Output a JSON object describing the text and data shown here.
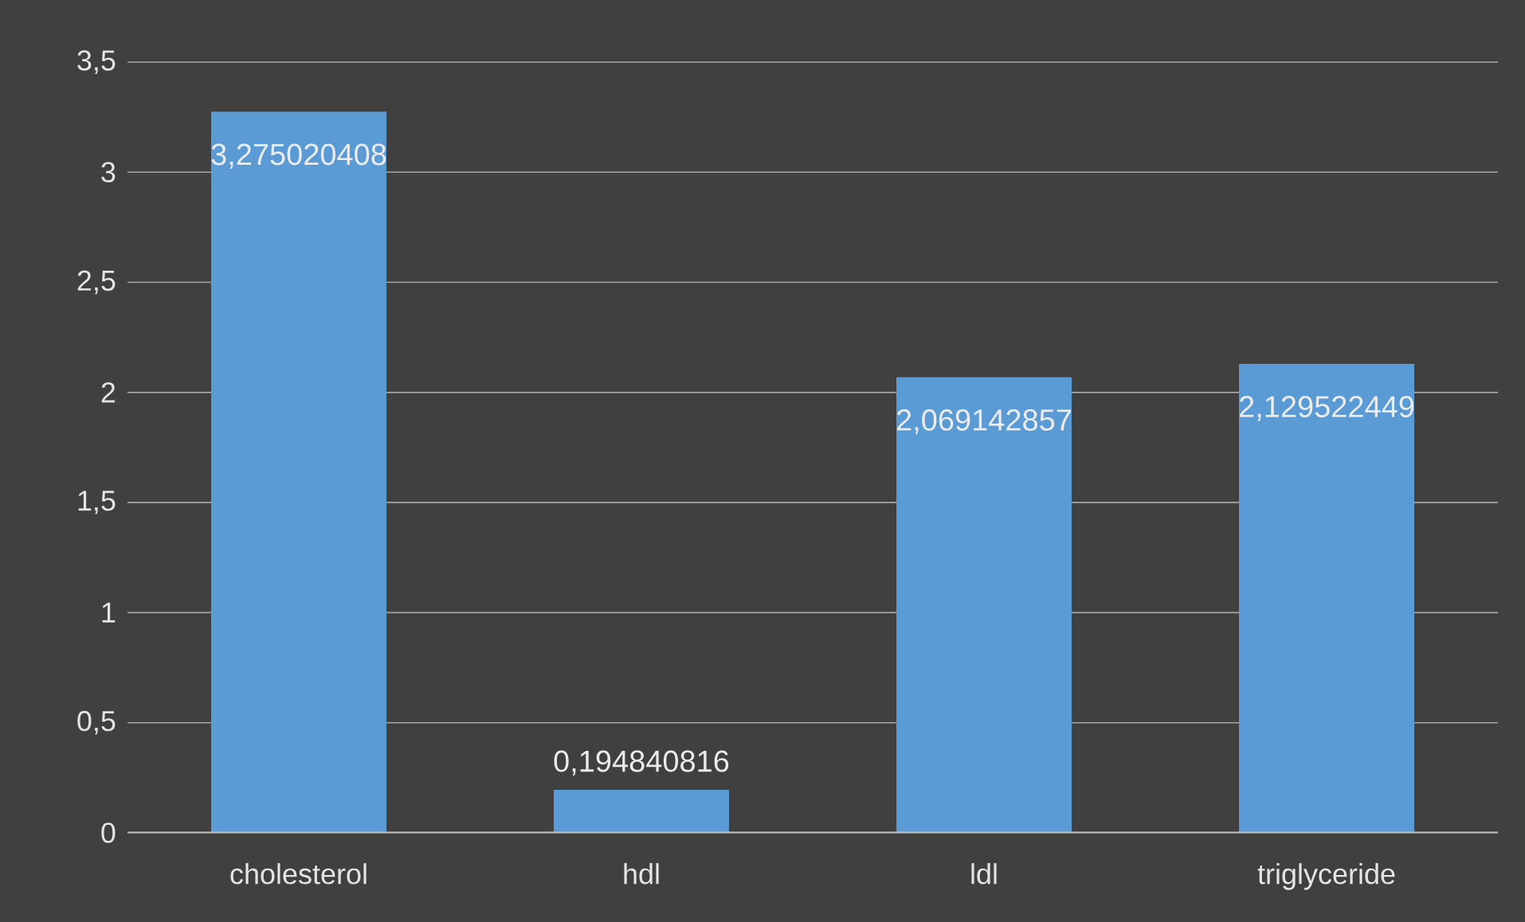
{
  "chart_data": {
    "type": "bar",
    "categories": [
      "cholesterol",
      "hdl",
      "ldl",
      "triglyceride"
    ],
    "values": [
      3.275020408,
      0.194840816,
      2.069142857,
      2.129522449
    ],
    "value_labels": [
      "3,275020408",
      "0,194840816",
      "2,069142857",
      "2,129522449"
    ],
    "color": "#5b9bd5",
    "ylim": [
      0,
      3.5
    ],
    "yticks": [
      0,
      {
        "value": 0.5,
        "label": "0,5"
      },
      1,
      {
        "value": 1.5,
        "label": "1,5"
      },
      2,
      {
        "value": 2.5,
        "label": "2,5"
      },
      3,
      {
        "value": 3.5,
        "label": "3,5"
      }
    ],
    "grid": "y"
  }
}
